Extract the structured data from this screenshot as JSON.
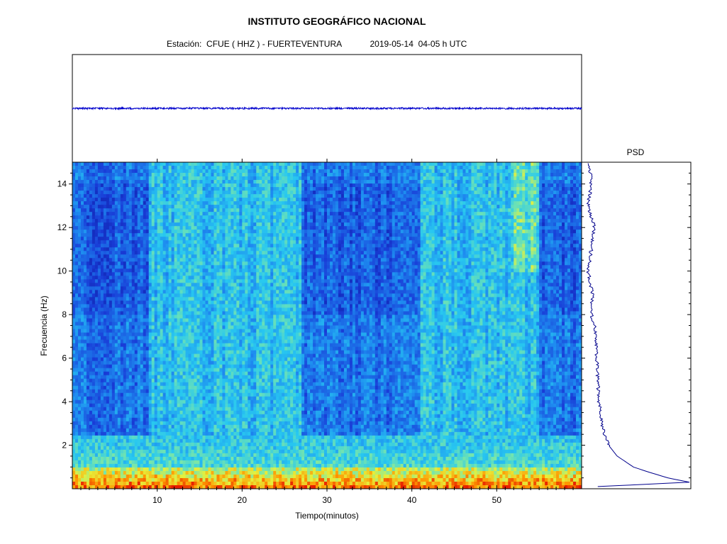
{
  "header": {
    "title": "INSTITUTO GEOGRÁFICO NACIONAL",
    "station_label": "Estación:",
    "station_name": "CFUE ( HHZ ) - FUERTEVENTURA",
    "date": "2019-05-14",
    "hours": "04-05 h UTC"
  },
  "colors": {
    "waveform": "#0000cc",
    "psd": "#00008b",
    "spectrogram_low": "#1e3fd0",
    "spectrogram_mid": "#27c6ee",
    "spectrogram_high": "#ff3a00"
  },
  "chart_data": [
    {
      "type": "line",
      "panel": "seismogram",
      "title": "",
      "description_visible": "flat waveform trace",
      "x_range": [
        0,
        60
      ],
      "y_level": 0
    },
    {
      "type": "heatmap",
      "panel": "spectrogram",
      "xlabel": "Tiempo(minutos)",
      "ylabel": "Frecuencia  (Hz)",
      "xlim": [
        0,
        60
      ],
      "ylim": [
        0,
        15
      ],
      "xticks": [
        "10",
        "20",
        "30",
        "40",
        "50"
      ],
      "yticks": [
        "2",
        "4",
        "6",
        "8",
        "10",
        "12",
        "14"
      ],
      "high_energy_band_hz": [
        0,
        1.0
      ],
      "noise_intervals_min": [
        [
          9,
          27
        ],
        [
          41,
          55
        ]
      ]
    },
    {
      "type": "line",
      "panel": "psd",
      "title": "PSD",
      "frequencies_hz": [
        0.1,
        0.3,
        0.5,
        0.8,
        1.0,
        1.5,
        2,
        2.5,
        3,
        4,
        5,
        6,
        7,
        7.5,
        8,
        9,
        10,
        11,
        12,
        13,
        14,
        15
      ],
      "relative_power": [
        0.15,
        1.0,
        0.8,
        0.6,
        0.48,
        0.33,
        0.25,
        0.21,
        0.19,
        0.16,
        0.15,
        0.14,
        0.13,
        0.12,
        0.09,
        0.1,
        0.06,
        0.09,
        0.12,
        0.06,
        0.09,
        0.07
      ]
    }
  ]
}
